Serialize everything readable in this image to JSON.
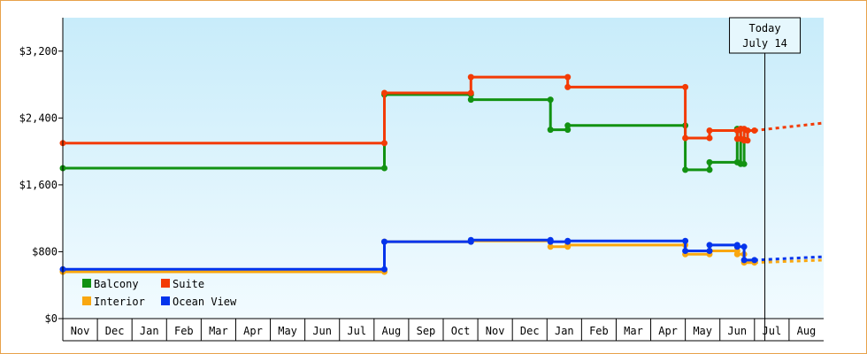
{
  "chart_data": {
    "type": "line",
    "title": "",
    "xlabel": "",
    "ylabel": "",
    "ylim": [
      0,
      3600
    ],
    "yticks": [
      0,
      800,
      1600,
      2400,
      3200
    ],
    "ytick_labels": [
      "$0",
      "$800",
      "$1,600",
      "$2,400",
      "$3,200"
    ],
    "month_labels": [
      "Nov",
      "Dec",
      "Jan",
      "Feb",
      "Mar",
      "Apr",
      "May",
      "Jun",
      "Jul",
      "Aug",
      "Sep",
      "Oct",
      "Nov",
      "Dec",
      "Jan",
      "Feb",
      "Mar",
      "Apr",
      "May",
      "Jun",
      "Jul",
      "Aug"
    ],
    "xlim": [
      0,
      22
    ],
    "grid": false,
    "background": "gradient-light-blue",
    "legend_position": "bottom-left",
    "today_marker": {
      "x": 20.3,
      "line1": "Today",
      "line2": "July 14"
    },
    "series": [
      {
        "name": "Balcony",
        "color": "#129212",
        "points": [
          [
            0.0,
            1800
          ],
          [
            9.3,
            1800
          ],
          [
            9.3,
            2680
          ],
          [
            11.8,
            2680
          ],
          [
            11.8,
            2620
          ],
          [
            14.1,
            2620
          ],
          [
            14.1,
            2260
          ],
          [
            14.6,
            2260
          ],
          [
            14.6,
            2310
          ],
          [
            18.0,
            2310
          ],
          [
            18.0,
            1780
          ],
          [
            18.7,
            1780
          ],
          [
            18.7,
            1870
          ],
          [
            19.5,
            1870
          ],
          [
            19.5,
            2270
          ],
          [
            19.6,
            2270
          ],
          [
            19.6,
            1850
          ],
          [
            19.7,
            1850
          ],
          [
            19.7,
            2140
          ]
        ],
        "forecast": []
      },
      {
        "name": "Suite",
        "color": "#f33b05",
        "points": [
          [
            0.0,
            2100
          ],
          [
            9.3,
            2100
          ],
          [
            9.3,
            2700
          ],
          [
            11.8,
            2700
          ],
          [
            11.8,
            2890
          ],
          [
            14.6,
            2890
          ],
          [
            14.6,
            2770
          ],
          [
            18.0,
            2770
          ],
          [
            18.0,
            2160
          ],
          [
            18.7,
            2160
          ],
          [
            18.7,
            2250
          ],
          [
            19.5,
            2250
          ],
          [
            19.5,
            2150
          ],
          [
            19.6,
            2150
          ],
          [
            19.6,
            2270
          ],
          [
            19.7,
            2270
          ],
          [
            19.7,
            2130
          ],
          [
            19.8,
            2130
          ],
          [
            19.8,
            2250
          ],
          [
            20.0,
            2250
          ]
        ],
        "forecast": [
          [
            20.0,
            2250
          ],
          [
            22.0,
            2340
          ]
        ]
      },
      {
        "name": "Interior",
        "color": "#f9a710",
        "points": [
          [
            0.0,
            560
          ],
          [
            9.3,
            560
          ],
          [
            9.3,
            920
          ],
          [
            11.8,
            920
          ],
          [
            11.8,
            930
          ],
          [
            14.1,
            930
          ],
          [
            14.1,
            860
          ],
          [
            14.6,
            860
          ],
          [
            14.6,
            880
          ],
          [
            18.0,
            880
          ],
          [
            18.0,
            770
          ],
          [
            18.7,
            770
          ],
          [
            18.7,
            810
          ],
          [
            19.5,
            810
          ],
          [
            19.5,
            770
          ],
          [
            19.7,
            770
          ],
          [
            19.7,
            670
          ],
          [
            20.0,
            670
          ]
        ],
        "forecast": [
          [
            20.0,
            670
          ],
          [
            22.0,
            700
          ]
        ]
      },
      {
        "name": "Ocean View",
        "color": "#0434ec",
        "points": [
          [
            0.0,
            590
          ],
          [
            9.3,
            590
          ],
          [
            9.3,
            920
          ],
          [
            11.8,
            920
          ],
          [
            11.8,
            940
          ],
          [
            14.1,
            940
          ],
          [
            14.1,
            920
          ],
          [
            14.6,
            920
          ],
          [
            14.6,
            930
          ],
          [
            18.0,
            930
          ],
          [
            18.0,
            810
          ],
          [
            18.7,
            810
          ],
          [
            18.7,
            880
          ],
          [
            19.5,
            880
          ],
          [
            19.5,
            860
          ],
          [
            19.7,
            860
          ],
          [
            19.7,
            700
          ],
          [
            20.0,
            700
          ]
        ],
        "forecast": [
          [
            20.0,
            700
          ],
          [
            22.0,
            740
          ]
        ]
      }
    ]
  }
}
